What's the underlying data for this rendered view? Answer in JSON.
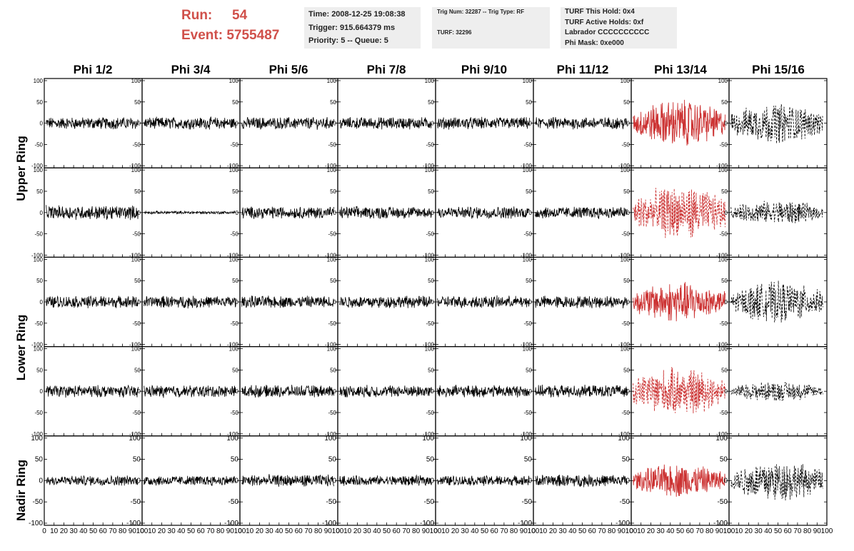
{
  "header": {
    "run_label": "Run:",
    "run_value": "54",
    "event_label": "Event:",
    "event_value": "5755487",
    "box1": [
      "Time: 2008-12-25 19:08:38",
      "Trigger: 915.664379 ms",
      "Priority: 5 -- Queue: 5"
    ],
    "box2": [
      "Trig Num: 32287 -- Trig Type: RF",
      "TURF: 32296"
    ],
    "box3": [
      "TURF This Hold: 0x4",
      "TURF Active Holds: 0xf",
      "Labrador CCCCCCCCCC",
      "Phi Mask: 0xe000"
    ]
  },
  "colors": {
    "run_event_text": "#d0504a",
    "trace_default": "#000000",
    "trace_highlight": "#cc3333",
    "info_box_bg": "#eeeeee"
  },
  "chart_data": {
    "type": "line",
    "columns": [
      "Phi 1/2",
      "Phi 3/4",
      "Phi 5/6",
      "Phi 7/8",
      "Phi 9/10",
      "Phi 11/12",
      "Phi 13/14",
      "Phi 15/16"
    ],
    "ring_labels": [
      "Upper Ring",
      "Lower Ring",
      "Nadir Ring"
    ],
    "panel_rows": 5,
    "xlim": [
      0,
      100
    ],
    "ylim": [
      -105,
      105
    ],
    "x_tick_labels": [
      "0",
      "10",
      "20",
      "30",
      "40",
      "50",
      "60",
      "70",
      "80",
      "90",
      "100"
    ],
    "y_tick_labels": [
      "-100",
      "-50",
      "0",
      "50",
      "100"
    ],
    "panel_amplitude": [
      [
        12,
        12,
        12,
        12,
        12,
        12,
        35,
        30
      ],
      [
        14,
        3,
        12,
        12,
        12,
        12,
        40,
        18
      ],
      [
        12,
        12,
        12,
        12,
        12,
        12,
        30,
        30
      ],
      [
        12,
        12,
        12,
        12,
        12,
        12,
        35,
        15
      ],
      [
        10,
        10,
        12,
        10,
        10,
        12,
        25,
        30
      ]
    ],
    "panel_style": [
      [
        "solid",
        "solid",
        "solid",
        "solid",
        "solid",
        "solid",
        "solid-red",
        "dashed"
      ],
      [
        "solid",
        "solid",
        "solid",
        "solid",
        "solid",
        "solid",
        "dashed-red",
        "dashed"
      ],
      [
        "solid",
        "solid",
        "solid",
        "solid",
        "solid",
        "solid",
        "solid-red",
        "dashed"
      ],
      [
        "solid",
        "solid",
        "solid",
        "solid",
        "solid",
        "solid",
        "dashed-red",
        "dashed"
      ],
      [
        "solid",
        "solid",
        "solid",
        "solid",
        "solid",
        "solid",
        "solid-red",
        "dashed"
      ]
    ]
  }
}
